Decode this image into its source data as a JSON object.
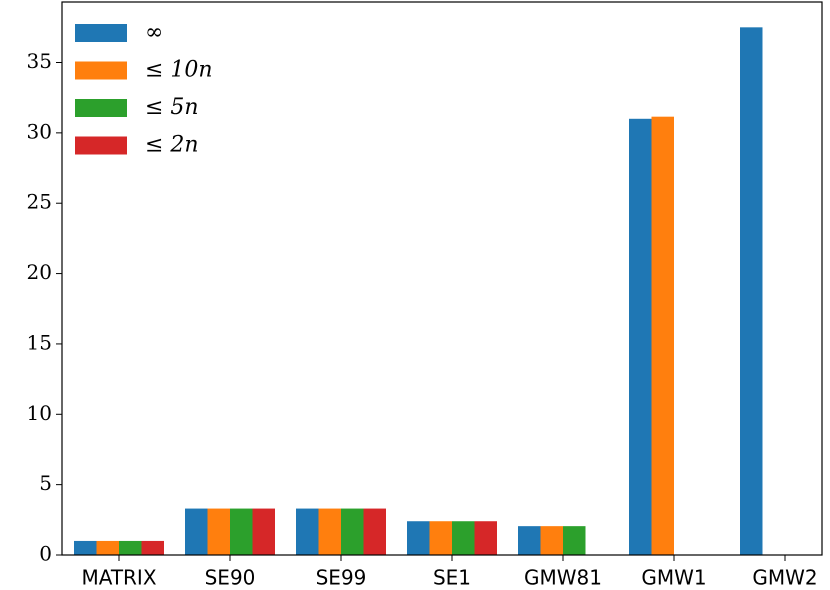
{
  "chart_data": {
    "type": "bar",
    "categories": [
      "MATRIX",
      "SE90",
      "SE99",
      "SE1",
      "GMW81",
      "GMW1",
      "GMW2"
    ],
    "series": [
      {
        "name": "∞",
        "color": "#1f77b4",
        "values": [
          1.0,
          3.3,
          3.3,
          2.4,
          2.05,
          31.0,
          37.5
        ]
      },
      {
        "name": "≤ 10n",
        "color": "#ff7f0e",
        "values": [
          1.0,
          3.3,
          3.3,
          2.4,
          2.05,
          31.15,
          null
        ]
      },
      {
        "name": "≤ 5n",
        "color": "#2ca02c",
        "values": [
          1.0,
          3.3,
          3.3,
          2.4,
          2.05,
          null,
          null
        ]
      },
      {
        "name": "≤ 2n",
        "color": "#d62728",
        "values": [
          1.0,
          3.3,
          3.3,
          2.4,
          null,
          null,
          null
        ]
      }
    ],
    "ylim": [
      0,
      39.3
    ],
    "yticks": [
      0,
      5,
      10,
      15,
      20,
      25,
      30,
      35
    ],
    "legend": "upper left"
  }
}
